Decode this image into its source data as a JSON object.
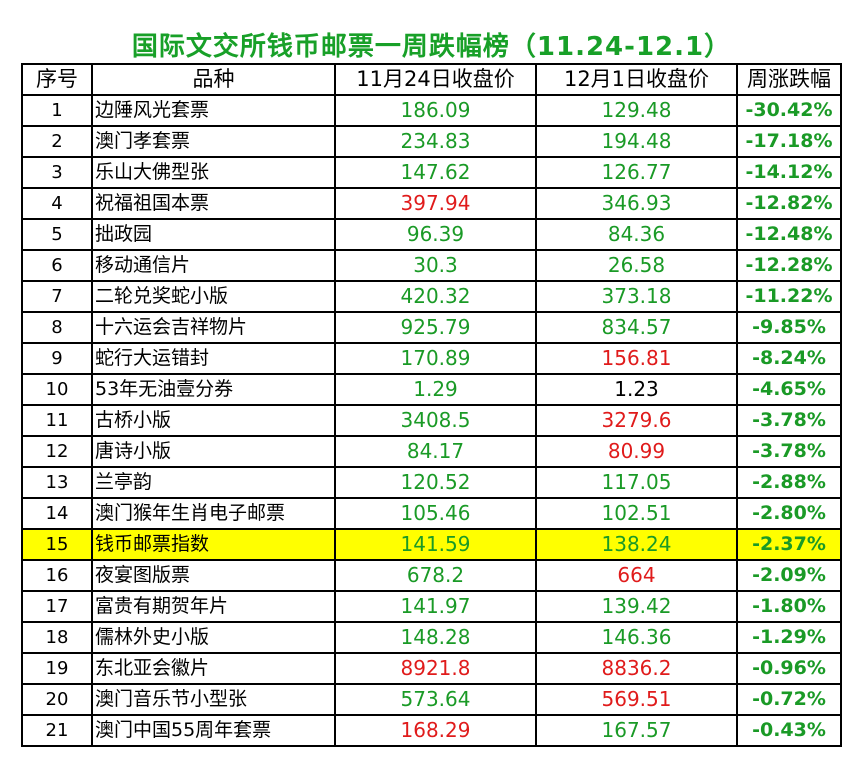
{
  "title": "国际文交所钱币邮票一周跌幅榜（11.24-12.1）",
  "headers": [
    "序号",
    "品种",
    "11月24日收盘价",
    "12月1日收盘价",
    "周涨跌幅"
  ],
  "colors": {
    "green": "#1a9a26",
    "red": "#e01b1b",
    "black": "#000000",
    "highlight": "#ffff00",
    "title": "#18a028"
  },
  "rows": [
    {
      "no": "1",
      "name": "边陲风光套票",
      "p1": "186.09",
      "c1": "green",
      "p2": "129.48",
      "c2": "green",
      "chg": "-30.42%"
    },
    {
      "no": "2",
      "name": "澳门孝套票",
      "p1": "234.83",
      "c1": "green",
      "p2": "194.48",
      "c2": "green",
      "chg": "-17.18%"
    },
    {
      "no": "3",
      "name": "乐山大佛型张",
      "p1": "147.62",
      "c1": "green",
      "p2": "126.77",
      "c2": "green",
      "chg": "-14.12%"
    },
    {
      "no": "4",
      "name": "祝福祖国本票",
      "p1": "397.94",
      "c1": "red",
      "p2": "346.93",
      "c2": "green",
      "chg": "-12.82%"
    },
    {
      "no": "5",
      "name": "拙政园",
      "p1": "96.39",
      "c1": "green",
      "p2": "84.36",
      "c2": "green",
      "chg": "-12.48%"
    },
    {
      "no": "6",
      "name": "移动通信片",
      "p1": "30.3",
      "c1": "green",
      "p2": "26.58",
      "c2": "green",
      "chg": "-12.28%"
    },
    {
      "no": "7",
      "name": "二轮兑奖蛇小版",
      "p1": "420.32",
      "c1": "green",
      "p2": "373.18",
      "c2": "green",
      "chg": "-11.22%"
    },
    {
      "no": "8",
      "name": "十六运会吉祥物片",
      "p1": "925.79",
      "c1": "green",
      "p2": "834.57",
      "c2": "green",
      "chg": "-9.85%"
    },
    {
      "no": "9",
      "name": "蛇行大运错封",
      "p1": "170.89",
      "c1": "green",
      "p2": "156.81",
      "c2": "red",
      "chg": "-8.24%"
    },
    {
      "no": "10",
      "name": "53年无油壹分券",
      "p1": "1.29",
      "c1": "green",
      "p2": "1.23",
      "c2": "black",
      "chg": "-4.65%"
    },
    {
      "no": "11",
      "name": "古桥小版",
      "p1": "3408.5",
      "c1": "green",
      "p2": "3279.6",
      "c2": "red",
      "chg": "-3.78%"
    },
    {
      "no": "12",
      "name": "唐诗小版",
      "p1": "84.17",
      "c1": "green",
      "p2": "80.99",
      "c2": "red",
      "chg": "-3.78%"
    },
    {
      "no": "13",
      "name": "兰亭韵",
      "p1": "120.52",
      "c1": "green",
      "p2": "117.05",
      "c2": "green",
      "chg": "-2.88%"
    },
    {
      "no": "14",
      "name": "澳门猴年生肖电子邮票",
      "p1": "105.46",
      "c1": "green",
      "p2": "102.51",
      "c2": "green",
      "chg": "-2.80%"
    },
    {
      "no": "15",
      "name": "钱币邮票指数",
      "p1": "141.59",
      "c1": "green",
      "p2": "138.24",
      "c2": "green",
      "chg": "-2.37%",
      "highlight": true
    },
    {
      "no": "16",
      "name": "夜宴图版票",
      "p1": "678.2",
      "c1": "green",
      "p2": "664",
      "c2": "red",
      "chg": "-2.09%"
    },
    {
      "no": "17",
      "name": "富贵有期贺年片",
      "p1": "141.97",
      "c1": "green",
      "p2": "139.42",
      "c2": "green",
      "chg": "-1.80%"
    },
    {
      "no": "18",
      "name": "儒林外史小版",
      "p1": "148.28",
      "c1": "green",
      "p2": "146.36",
      "c2": "green",
      "chg": "-1.29%"
    },
    {
      "no": "19",
      "name": "东北亚会徽片",
      "p1": "8921.8",
      "c1": "red",
      "p2": "8836.2",
      "c2": "red",
      "chg": "-0.96%"
    },
    {
      "no": "20",
      "name": "澳门音乐节小型张",
      "p1": "573.64",
      "c1": "green",
      "p2": "569.51",
      "c2": "red",
      "chg": "-0.72%"
    },
    {
      "no": "21",
      "name": "澳门中国55周年套票",
      "p1": "168.29",
      "c1": "red",
      "p2": "167.57",
      "c2": "green",
      "chg": "-0.43%"
    }
  ]
}
